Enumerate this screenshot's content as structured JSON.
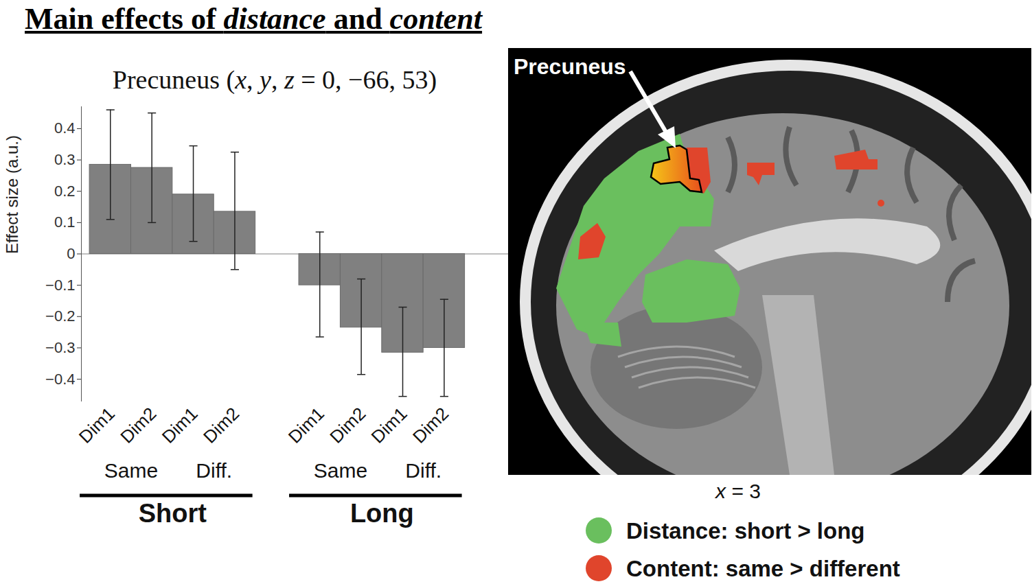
{
  "title": [
    {
      "text": "Main effects of "
    },
    {
      "text": "distance",
      "italic": true
    },
    {
      "text": " and "
    },
    {
      "text": "content",
      "italic": true
    }
  ],
  "chart_data": {
    "type": "bar",
    "title": [
      {
        "text": "Precuneus ("
      },
      {
        "text": "x",
        "italic": true
      },
      {
        "text": ", "
      },
      {
        "text": "y",
        "italic": true
      },
      {
        "text": ", "
      },
      {
        "text": "z",
        "italic": true
      },
      {
        "text": " = 0, −66, 53)"
      }
    ],
    "y_label": "Effect size (a.u.)",
    "categories": [
      "Dim1",
      "Dim2",
      "Dim1",
      "Dim2",
      "Dim1",
      "Dim2",
      "Dim1",
      "Dim2"
    ],
    "content": [
      "Same",
      "Same",
      "Diff.",
      "Diff.",
      "Same",
      "Same",
      "Diff.",
      "Diff."
    ],
    "distance": [
      "Short",
      "Short",
      "Short",
      "Short",
      "Long",
      "Long",
      "Long",
      "Long"
    ],
    "values": [
      0.285,
      0.275,
      0.19,
      0.135,
      -0.1,
      -0.235,
      -0.315,
      -0.3
    ],
    "error_low": [
      0.11,
      0.1,
      0.04,
      -0.05,
      -0.265,
      -0.385,
      -0.455,
      -0.455
    ],
    "error_high": [
      0.46,
      0.45,
      0.345,
      0.325,
      0.07,
      -0.08,
      -0.17,
      -0.145
    ],
    "color": "#808080",
    "ylim": [
      -0.47,
      0.47
    ],
    "yticks": [
      {
        "value": -0.4,
        "label": "−0.4"
      },
      {
        "value": -0.3,
        "label": "−0.3"
      },
      {
        "value": -0.2,
        "label": "−0.2"
      },
      {
        "value": -0.1,
        "label": "−0.1"
      },
      0,
      0.1,
      0.2,
      0.3,
      0.4
    ]
  },
  "image": {
    "label": "Precuneus",
    "slice": [
      {
        "text": "x",
        "italic": true
      },
      {
        "text": " = 3"
      }
    ],
    "legend": [
      {
        "name": "Distance: short > long",
        "color": "#6abf5e"
      },
      {
        "name": "Content: same > different",
        "color": "#e0452c"
      }
    ]
  }
}
